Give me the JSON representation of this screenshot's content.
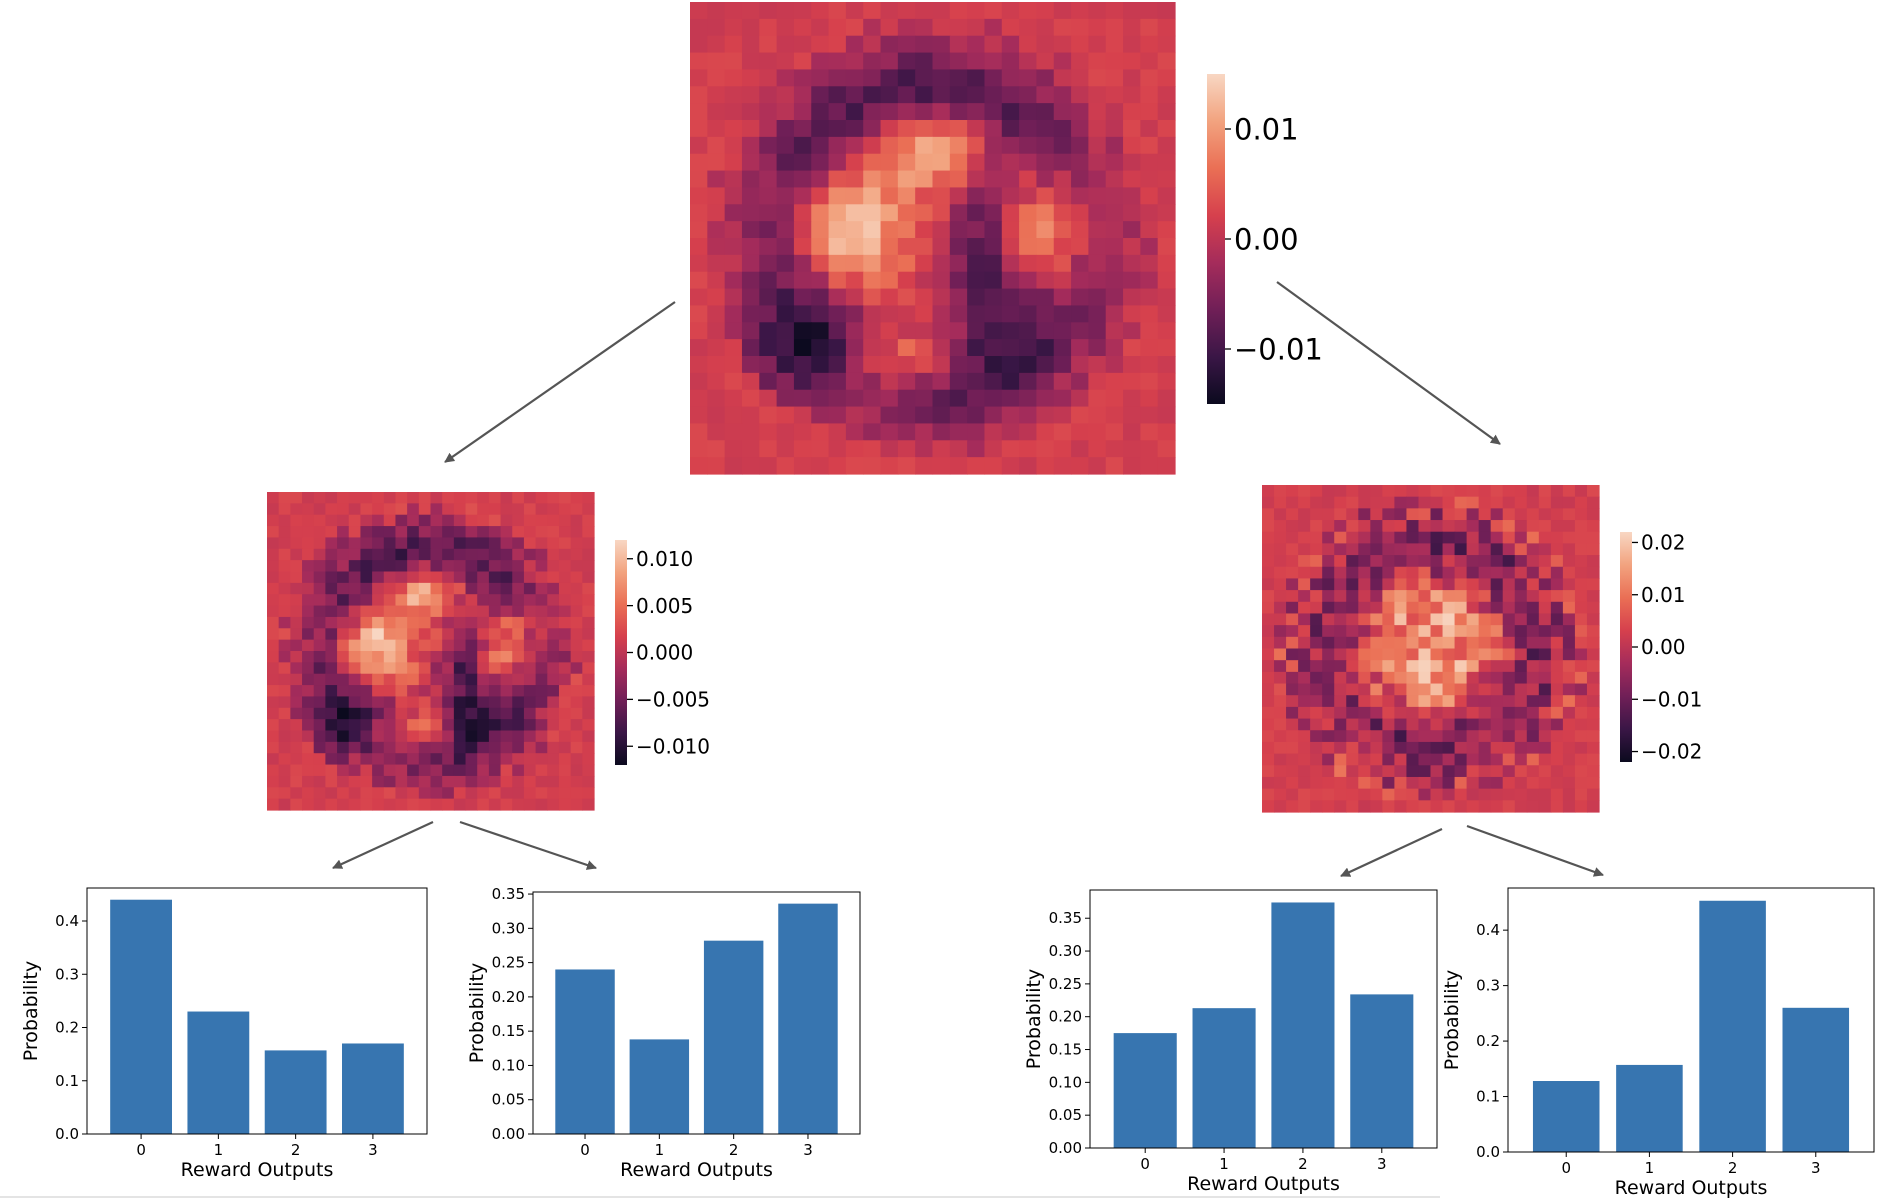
{
  "colors": {
    "bar": "#3775b0",
    "arrow": "#555555",
    "cmap_stops": [
      "#0b0a1e",
      "#3a1646",
      "#701f57",
      "#a52c5b",
      "#d6404d",
      "#ea6f55",
      "#f2a37f",
      "#f8d7c3"
    ]
  },
  "chart_data": [
    {
      "type": "heatmap",
      "id": "root",
      "colorbar": {
        "range": [
          -0.015,
          0.015
        ],
        "ticks": [
          "0.01",
          "0.00",
          "−0.01"
        ],
        "tick_values": [
          0.01,
          0,
          -0.01
        ]
      }
    },
    {
      "type": "heatmap",
      "id": "left",
      "colorbar": {
        "range": [
          -0.012,
          0.012
        ],
        "ticks": [
          "0.010",
          "0.005",
          "0.000",
          "−0.005",
          "−0.010"
        ],
        "tick_values": [
          0.01,
          0.005,
          0,
          -0.005,
          -0.01
        ]
      }
    },
    {
      "type": "heatmap",
      "id": "right",
      "colorbar": {
        "range": [
          -0.022,
          0.022
        ],
        "ticks": [
          "0.02",
          "0.01",
          "0.00",
          "−0.01",
          "−0.02"
        ],
        "tick_values": [
          0.02,
          0.01,
          0,
          -0.01,
          -0.02
        ]
      }
    },
    {
      "type": "bar",
      "id": "bar-ll",
      "categories": [
        "0",
        "1",
        "2",
        "3"
      ],
      "values": [
        0.44,
        0.23,
        0.157,
        0.17
      ],
      "xlabel": "Reward Outputs",
      "ylabel": "Probability",
      "ylim": [
        0,
        0.462
      ],
      "yticks": [
        "0.0",
        "0.1",
        "0.2",
        "0.3",
        "0.4"
      ],
      "ytick_values": [
        0,
        0.1,
        0.2,
        0.3,
        0.4
      ]
    },
    {
      "type": "bar",
      "id": "bar-lr",
      "categories": [
        "0",
        "1",
        "2",
        "3"
      ],
      "values": [
        0.24,
        0.138,
        0.282,
        0.336
      ],
      "xlabel": "Reward Outputs",
      "ylabel": "Probability",
      "ylim": [
        0,
        0.353
      ],
      "yticks": [
        "0.00",
        "0.05",
        "0.10",
        "0.15",
        "0.20",
        "0.25",
        "0.30",
        "0.35"
      ],
      "ytick_values": [
        0,
        0.05,
        0.1,
        0.15,
        0.2,
        0.25,
        0.3,
        0.35
      ]
    },
    {
      "type": "bar",
      "id": "bar-rl",
      "categories": [
        "0",
        "1",
        "2",
        "3"
      ],
      "values": [
        0.175,
        0.213,
        0.374,
        0.234
      ],
      "xlabel": "Reward Outputs",
      "ylabel": "Probability",
      "ylim": [
        0,
        0.393
      ],
      "yticks": [
        "0.00",
        "0.05",
        "0.10",
        "0.15",
        "0.20",
        "0.25",
        "0.30",
        "0.35"
      ],
      "ytick_values": [
        0,
        0.05,
        0.1,
        0.15,
        0.2,
        0.25,
        0.3,
        0.35
      ]
    },
    {
      "type": "bar",
      "id": "bar-rr",
      "categories": [
        "0",
        "1",
        "2",
        "3"
      ],
      "values": [
        0.128,
        0.157,
        0.453,
        0.26
      ],
      "xlabel": "Reward Outputs",
      "ylabel": "Probability",
      "ylim": [
        0,
        0.476
      ],
      "yticks": [
        "0.0",
        "0.1",
        "0.2",
        "0.3",
        "0.4"
      ],
      "ytick_values": [
        0,
        0.1,
        0.2,
        0.3,
        0.4
      ]
    }
  ]
}
